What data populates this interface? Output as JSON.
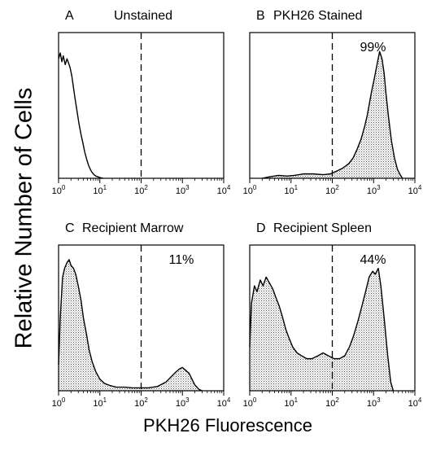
{
  "figure": {
    "ylabel": "Relative Number of Cells",
    "xlabel": "PKH26 Fluorescence"
  },
  "chart_data": [
    {
      "type": "area",
      "panel": "A",
      "title": "Unstained",
      "annotation": "",
      "fill": "none",
      "x_scale": "log",
      "xlim": [
        1,
        10000
      ],
      "ylim": [
        0,
        100
      ],
      "gate": 100,
      "xticks": [
        {
          "base": "10",
          "exp": "0"
        },
        {
          "base": "10",
          "exp": "1"
        },
        {
          "base": "10",
          "exp": "2"
        },
        {
          "base": "10",
          "exp": "3"
        },
        {
          "base": "10",
          "exp": "4"
        }
      ],
      "x": [
        1,
        1.1,
        1.2,
        1.3,
        1.45,
        1.6,
        1.75,
        1.9,
        2.1,
        2.3,
        2.5,
        2.8,
        3.1,
        3.5,
        3.9,
        4.3,
        4.8,
        5.3,
        5.9,
        6.5,
        7.2,
        8,
        9,
        10,
        11,
        12
      ],
      "y": [
        82,
        86,
        80,
        84,
        78,
        82,
        79,
        76,
        70,
        62,
        55,
        46,
        38,
        30,
        24,
        18,
        13,
        9,
        6,
        4,
        2.5,
        1.5,
        1,
        0.5,
        0.2,
        0
      ]
    },
    {
      "type": "area",
      "panel": "B",
      "title": "PKH26 Stained",
      "annotation": "99%",
      "fill": "dotted",
      "x_scale": "log",
      "xlim": [
        1,
        10000
      ],
      "ylim": [
        0,
        100
      ],
      "gate": 100,
      "xticks": [
        {
          "base": "10",
          "exp": "0"
        },
        {
          "base": "10",
          "exp": "1"
        },
        {
          "base": "10",
          "exp": "2"
        },
        {
          "base": "10",
          "exp": "3"
        },
        {
          "base": "10",
          "exp": "4"
        }
      ],
      "x": [
        2,
        3,
        5,
        8,
        12,
        20,
        35,
        60,
        90,
        130,
        180,
        250,
        320,
        400,
        500,
        600,
        700,
        800,
        900,
        1000,
        1100,
        1250,
        1400,
        1600,
        1800,
        2000,
        2300,
        2700,
        3200,
        3800,
        4500,
        5000
      ],
      "y": [
        0,
        1,
        2,
        1.5,
        2,
        3,
        3,
        2.5,
        3,
        5,
        7,
        10,
        14,
        20,
        27,
        35,
        43,
        52,
        60,
        66,
        72,
        80,
        87,
        82,
        72,
        58,
        42,
        26,
        14,
        6,
        2,
        0
      ]
    },
    {
      "type": "area",
      "panel": "C",
      "title": "Recipient Marrow",
      "annotation": "11%",
      "fill": "dotted",
      "x_scale": "log",
      "xlim": [
        1,
        10000
      ],
      "ylim": [
        0,
        100
      ],
      "gate": 100,
      "xticks": [
        {
          "base": "10",
          "exp": "0"
        },
        {
          "base": "10",
          "exp": "1"
        },
        {
          "base": "10",
          "exp": "2"
        },
        {
          "base": "10",
          "exp": "3"
        },
        {
          "base": "10",
          "exp": "4"
        }
      ],
      "x": [
        1,
        1.1,
        1.25,
        1.4,
        1.6,
        1.8,
        2,
        2.3,
        2.6,
        3,
        3.5,
        4,
        4.8,
        5.5,
        6.5,
        8,
        10,
        13,
        18,
        25,
        40,
        60,
        100,
        150,
        250,
        400,
        550,
        700,
        850,
        1000,
        1200,
        1450,
        1700,
        2000,
        2500,
        3000
      ],
      "y": [
        18,
        50,
        78,
        84,
        88,
        90,
        86,
        84,
        80,
        72,
        62,
        50,
        38,
        28,
        20,
        13,
        8,
        5,
        3.5,
        2.5,
        2.5,
        2,
        2,
        2,
        3,
        6,
        10,
        13,
        15,
        16,
        14,
        12,
        8,
        4,
        1,
        0
      ]
    },
    {
      "type": "area",
      "panel": "D",
      "title": "Recipient Spleen",
      "annotation": "44%",
      "fill": "dotted",
      "x_scale": "log",
      "xlim": [
        1,
        10000
      ],
      "ylim": [
        0,
        100
      ],
      "gate": 100,
      "xticks": [
        {
          "base": "10",
          "exp": "0"
        },
        {
          "base": "10",
          "exp": "1"
        },
        {
          "base": "10",
          "exp": "2"
        },
        {
          "base": "10",
          "exp": "3"
        },
        {
          "base": "10",
          "exp": "4"
        }
      ],
      "x": [
        1,
        1.1,
        1.3,
        1.5,
        1.8,
        2.1,
        2.5,
        3,
        3.6,
        4.3,
        5.2,
        6.3,
        7.5,
        9,
        11,
        14,
        18,
        24,
        32,
        45,
        60,
        80,
        110,
        150,
        200,
        260,
        330,
        420,
        520,
        640,
        780,
        950,
        1100,
        1300,
        1500,
        1800,
        2200,
        2600,
        3000
      ],
      "y": [
        30,
        60,
        72,
        68,
        76,
        72,
        78,
        74,
        70,
        64,
        58,
        50,
        42,
        36,
        30,
        26,
        24,
        22,
        22,
        24,
        26,
        24,
        22,
        22,
        24,
        30,
        38,
        48,
        58,
        68,
        78,
        82,
        80,
        84,
        72,
        50,
        24,
        6,
        0
      ]
    }
  ]
}
